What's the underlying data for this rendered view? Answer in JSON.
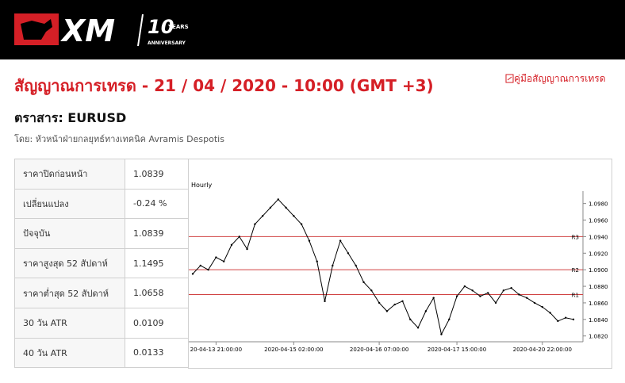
{
  "header": {
    "logo_text": "XM",
    "anniversary_number": "10",
    "anniversary_years": "YEARS",
    "anniversary_word": "ANNIVERSARY"
  },
  "title": "สัญญาณการเทรด - 21 / 04 / 2020 - 10:00 (GMT +3)",
  "guide_link": "คู่มือสัญญาณการเทรด",
  "instrument": "ตราสาร: EURUSD",
  "author": "โดย: หัวหน้าฝ่ายกลยุทธ์ทางเทคนิค Avramis Despotis",
  "table": {
    "rows": [
      [
        "ราคาปิดก่อนหน้า",
        "1.0839"
      ],
      [
        "เปลี่ยนแปลง",
        "-0.24 %"
      ],
      [
        "ปัจจุบัน",
        "1.0839"
      ],
      [
        "ราคาสูงสุด 52 สัปดาห์",
        "1.1495"
      ],
      [
        "ราคาต่ำสุด 52 สัปดาห์",
        "1.0658"
      ],
      [
        "30 วัน ATR",
        "0.0109"
      ],
      [
        "40 วัน ATR",
        "0.0133"
      ]
    ]
  },
  "chart_data": {
    "type": "line",
    "subtitle": "Hourly",
    "color": "#000000",
    "values": [
      1.0895,
      1.0905,
      1.09,
      1.0915,
      1.091,
      1.093,
      1.094,
      1.0925,
      1.0955,
      1.0965,
      1.0975,
      1.0985,
      1.0975,
      1.0965,
      1.0955,
      1.0935,
      1.091,
      1.0862,
      1.0905,
      1.0935,
      1.092,
      1.0905,
      1.0885,
      1.0875,
      1.086,
      1.085,
      1.0858,
      1.0862,
      1.084,
      1.083,
      1.085,
      1.0866,
      1.0822,
      1.084,
      1.0868,
      1.088,
      1.0875,
      1.0868,
      1.0872,
      1.086,
      1.0875,
      1.0878,
      1.087,
      1.0866,
      1.086,
      1.0855,
      1.0848,
      1.0838,
      1.0842,
      1.084
    ],
    "xlim": [
      0,
      49
    ],
    "xticks": [
      {
        "value": 3,
        "label": "20-04-13 21:00:00"
      },
      {
        "value": 13,
        "label": "2020-04-15 02:00:00"
      },
      {
        "value": 24,
        "label": "2020-04-16 07:00:00"
      },
      {
        "value": 34,
        "label": "2020-04-17 15:00:00"
      },
      {
        "value": 45,
        "label": "2020-04-20 22:00:00"
      }
    ],
    "ylim": [
      1.0813,
      1.0995
    ],
    "yticks": [
      {
        "value": 1.082,
        "label": "1.0820"
      },
      {
        "value": 1.084,
        "label": "1.0840"
      },
      {
        "value": 1.086,
        "label": "1.0860"
      },
      {
        "value": 1.088,
        "label": "1.0880"
      },
      {
        "value": 1.09,
        "label": "1.0900"
      },
      {
        "value": 1.092,
        "label": "1.0920"
      },
      {
        "value": 1.094,
        "label": "1.0940"
      },
      {
        "value": 1.096,
        "label": "1.0960"
      },
      {
        "value": 1.098,
        "label": "1.0980"
      }
    ],
    "levels": [
      {
        "name": "R3",
        "value": 1.094,
        "color": "#d04040"
      },
      {
        "name": "R2",
        "value": 1.09,
        "color": "#d04040"
      },
      {
        "name": "R1",
        "value": 1.087,
        "color": "#d04040"
      }
    ]
  }
}
